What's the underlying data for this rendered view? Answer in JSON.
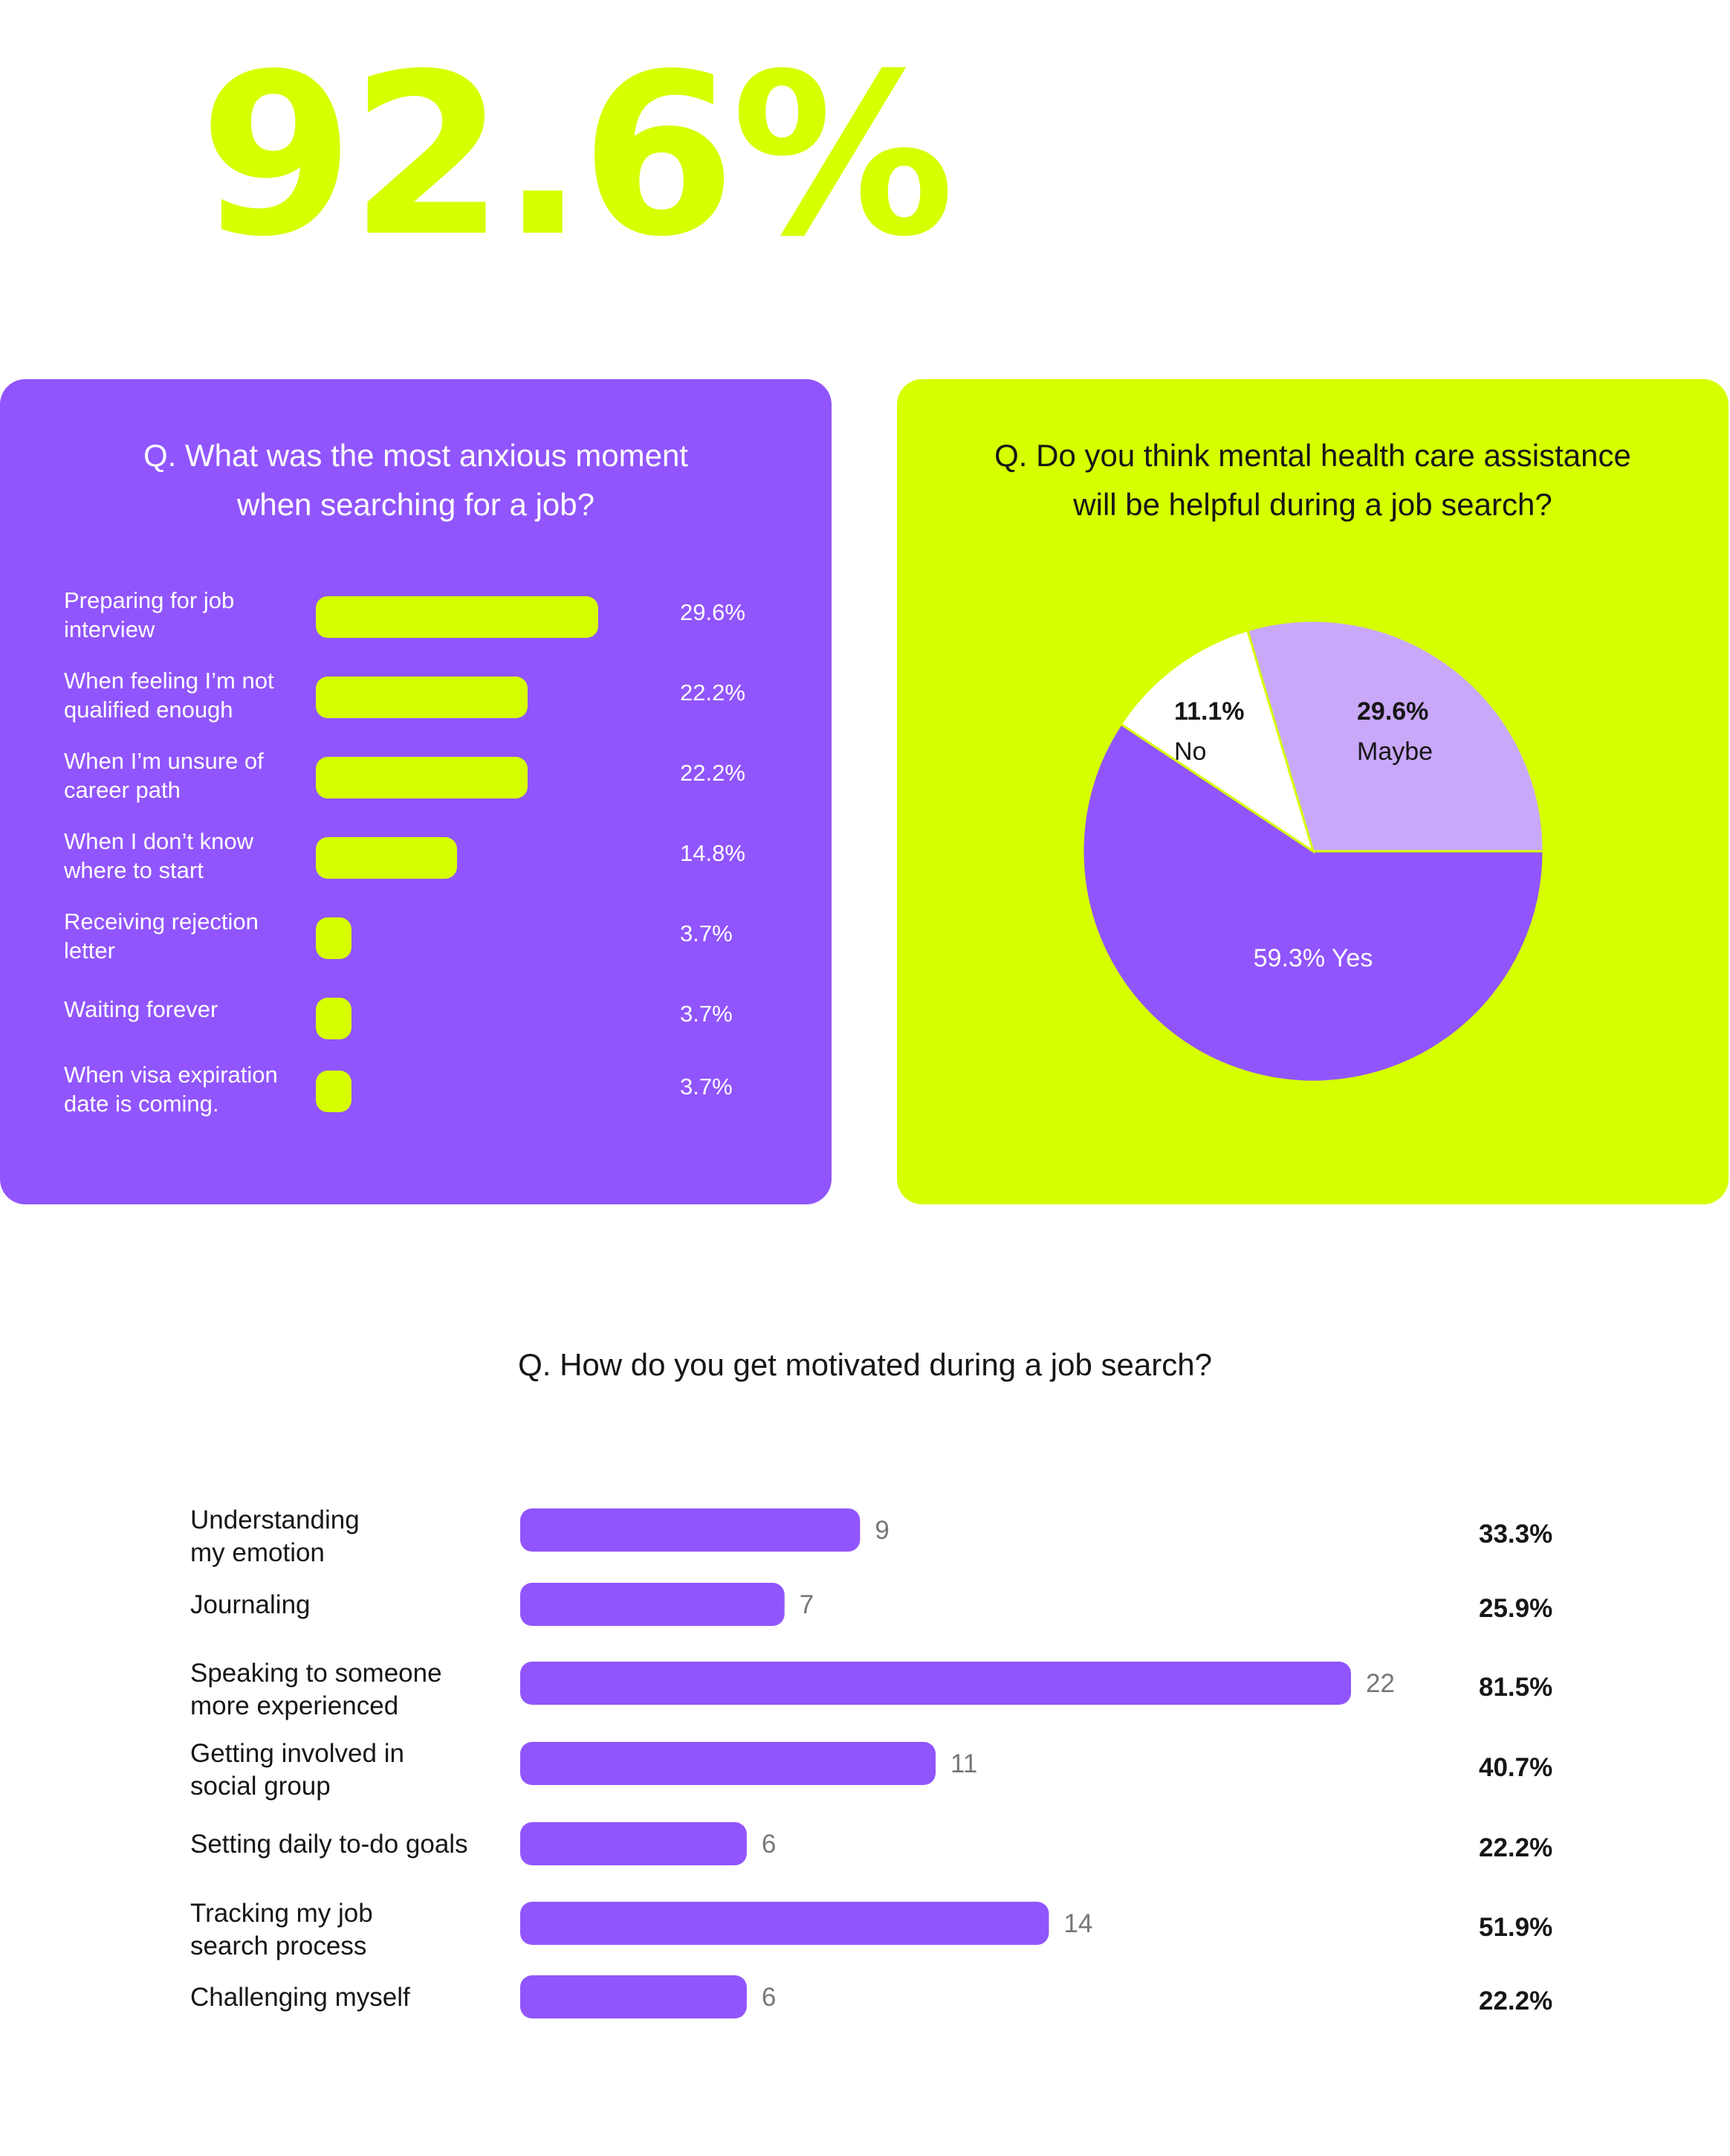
{
  "headline": {
    "value": "92.6%"
  },
  "colors": {
    "purple": "#9155FD",
    "lime": "#D6FF00",
    "lavender": "#C9A8FA",
    "white": "#FFFFFF",
    "dark": "#161616",
    "gray": "#777777"
  },
  "chart_data": [
    {
      "type": "bar",
      "orientation": "horizontal",
      "title": "Q. What was the most anxious moment when searching for a job?",
      "title_lines": [
        "Q. What was the most anxious moment",
        "when searching for a job?"
      ],
      "categories": [
        "Preparing for job interview",
        "When feeling I’m not qualified enough",
        "When I’m unsure of career path",
        "When I don’t know where to start",
        "Receiving rejection letter",
        "Waiting forever",
        "When visa expiration date is coming."
      ],
      "category_lines": [
        [
          "Preparing for job",
          "interview"
        ],
        [
          "When feeling I’m not",
          "qualified enough"
        ],
        [
          "When I’m unsure of",
          "career path"
        ],
        [
          "When I don’t know",
          "where to start"
        ],
        [
          "Receiving rejection",
          "letter"
        ],
        [
          "Waiting forever"
        ],
        [
          "When visa expiration",
          "date is coming."
        ]
      ],
      "values": [
        29.6,
        22.2,
        22.2,
        14.8,
        3.7,
        3.7,
        3.7
      ],
      "value_labels": [
        "29.6%",
        "22.2%",
        "22.2%",
        "14.8%",
        "3.7%",
        "3.7%",
        "3.7%"
      ],
      "unit": "%"
    },
    {
      "type": "pie",
      "title": "Q. Do you think mental health care assistance will be helpful during a job search?",
      "title_lines": [
        "Q. Do you think mental health care assistance",
        "will be helpful during a job search?"
      ],
      "slices": [
        {
          "label": "Maybe",
          "value": 29.6,
          "display": "29.6%"
        },
        {
          "label": "Yes",
          "value": 59.3,
          "display": "59.3% Yes"
        },
        {
          "label": "No",
          "value": 11.1,
          "display": "11.1%"
        }
      ]
    },
    {
      "type": "bar",
      "orientation": "horizontal",
      "title": "Q. How do you get motivated during a job search?",
      "categories": [
        "Understanding my emotion",
        "Journaling",
        "Speaking to someone more experienced",
        "Getting involved in social group",
        "Setting daily to-do goals",
        "Tracking my job search process",
        "Challenging myself"
      ],
      "category_lines": [
        [
          "Understanding",
          "my emotion"
        ],
        [
          "Journaling"
        ],
        [
          "Speaking to someone",
          "more experienced"
        ],
        [
          "Getting involved in",
          "social group"
        ],
        [
          "Setting daily to-do goals"
        ],
        [
          "Tracking my job",
          "search process"
        ],
        [
          "Challenging myself"
        ]
      ],
      "values": [
        9,
        7,
        22,
        11,
        6,
        14,
        6
      ],
      "percent_labels": [
        "33.3%",
        "25.9%",
        "81.5%",
        "40.7%",
        "22.2%",
        "51.9%",
        "22.2%"
      ]
    }
  ]
}
